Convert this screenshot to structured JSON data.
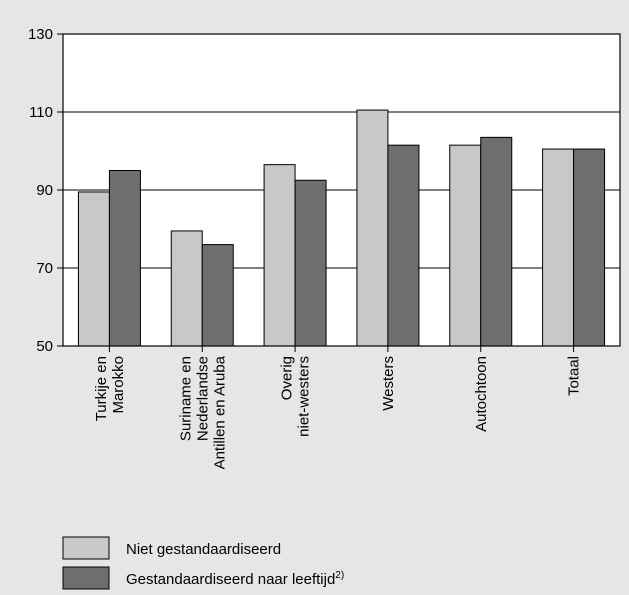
{
  "chart_data": {
    "type": "bar",
    "categories": [
      [
        "Turkije en",
        "Marokko"
      ],
      [
        "Suriname en",
        "Nederlandse",
        "Antillen en Aruba"
      ],
      [
        "Overig",
        "niet-westers"
      ],
      [
        "Westers"
      ],
      [
        "Autochtoon"
      ],
      [
        "Totaal"
      ]
    ],
    "series": [
      {
        "name": "Niet gestandaardiseerd",
        "values": [
          89.5,
          79.5,
          96.5,
          110.5,
          101.5,
          100.5
        ],
        "color": "#c8c8c8"
      },
      {
        "name": "Gestandaardiseerd naar leeftijd",
        "superscript": "2)",
        "values": [
          95,
          76,
          92.5,
          101.5,
          103.5,
          100.5
        ],
        "color": "#6e6e6e"
      }
    ],
    "ylim": [
      50,
      130
    ],
    "yticks": [
      50,
      70,
      90,
      110,
      130
    ],
    "grid": true,
    "legend_position": "bottom-left"
  }
}
